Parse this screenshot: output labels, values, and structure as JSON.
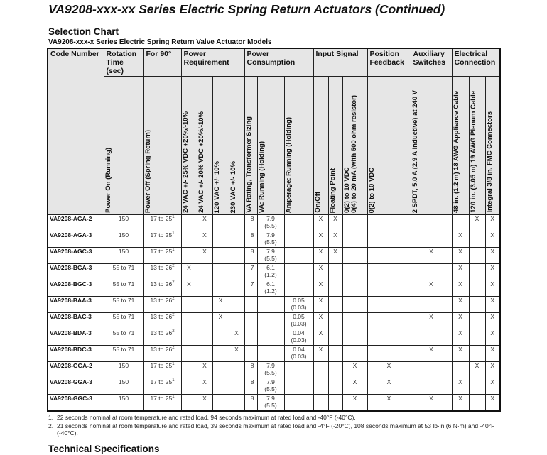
{
  "title": "VA9208-xxx-xx Series Electric Spring Return Actuators (Continued)",
  "section_title": "Selection Chart",
  "table_caption": "VA9208-xxx-x Series Electric Spring Return Valve Actuator Models",
  "headers": {
    "code": "Code Number",
    "rotation": "Rotation Time (sec)",
    "for90": "For 90°",
    "power_req": "Power Requirement",
    "power_cons": "Power Consumption",
    "input": "Input Signal",
    "position": "Position Feedback",
    "aux": "Auxiliary Switches",
    "elec": "Electrical Connection"
  },
  "subheaders": [
    "Power On (Running)",
    "Power Off (Spring Return)",
    "24 VAC +/- 25% VDC +20%/-10%",
    "24 VAC +/- 20% VDC +20%/-10%",
    "120 VAC +/- 10%",
    "230 VAC +/- 10%",
    "VA Rating, Transformer Sizing",
    "VA: Running (Holding)",
    "Amperage: Running (Holding)",
    "On/Off",
    "Floating Point",
    "0(2) to 10 VDC\n0(4) to 20 mA (with 500 ohm resistor)",
    "0(2) to 10 VDC",
    "2 SPDT, 5.0 A (2.9 A Inductive) at 240 V",
    "48 in. (1.2 m) 18 AWG Appliance Cable",
    "120 in. (3.05 m) 19 AWG Plenum Cable",
    "Integral 3/8 in. FMC Connectors"
  ],
  "rows": [
    {
      "code": "VA9208-AGA-2",
      "on": "150",
      "off": "17 to 25",
      "note": "1",
      "cells": [
        "",
        "X",
        "",
        "",
        "8",
        "7.9\n(5.5)",
        "",
        "X",
        "X",
        "",
        "",
        "",
        "",
        "X",
        "X"
      ]
    },
    {
      "code": "VA9208-AGA-3",
      "on": "150",
      "off": "17 to 25",
      "note": "1",
      "cells": [
        "",
        "X",
        "",
        "",
        "8",
        "7.9\n(5.5)",
        "",
        "X",
        "X",
        "",
        "",
        "",
        "X",
        "",
        "X"
      ]
    },
    {
      "code": "VA9208-AGC-3",
      "on": "150",
      "off": "17 to 25",
      "note": "1",
      "cells": [
        "",
        "X",
        "",
        "",
        "8",
        "7.9\n(5.5)",
        "",
        "X",
        "X",
        "",
        "",
        "X",
        "X",
        "",
        "X"
      ]
    },
    {
      "code": "VA9208-BGA-3",
      "on": "55 to 71",
      "off": "13 to 26",
      "note": "2",
      "cells": [
        "X",
        "",
        "",
        "",
        "7",
        "6.1\n(1.2)",
        "",
        "X",
        "",
        "",
        "",
        "",
        "X",
        "",
        "X"
      ]
    },
    {
      "code": "VA9208-BGC-3",
      "on": "55 to 71",
      "off": "13 to 26",
      "note": "2",
      "cells": [
        "X",
        "",
        "",
        "",
        "7",
        "6.1\n(1.2)",
        "",
        "X",
        "",
        "",
        "",
        "X",
        "X",
        "",
        "X"
      ]
    },
    {
      "code": "VA9208-BAA-3",
      "on": "55 to 71",
      "off": "13 to 26",
      "note": "2",
      "cells": [
        "",
        "",
        "X",
        "",
        "",
        "",
        "0.05\n(0.03)",
        "X",
        "",
        "",
        "",
        "",
        "X",
        "",
        "X"
      ]
    },
    {
      "code": "VA9208-BAC-3",
      "on": "55 to 71",
      "off": "13 to 26",
      "note": "2",
      "cells": [
        "",
        "",
        "X",
        "",
        "",
        "",
        "0.05\n(0.03)",
        "X",
        "",
        "",
        "",
        "X",
        "X",
        "",
        "X"
      ]
    },
    {
      "code": "VA9208-BDA-3",
      "on": "55 to 71",
      "off": "13 to 26",
      "note": "2",
      "cells": [
        "",
        "",
        "",
        "X",
        "",
        "",
        "0.04\n(0.03)",
        "X",
        "",
        "",
        "",
        "",
        "X",
        "",
        "X"
      ]
    },
    {
      "code": "VA9208-BDC-3",
      "on": "55 to 71",
      "off": "13 to 26",
      "note": "2",
      "cells": [
        "",
        "",
        "",
        "X",
        "",
        "",
        "0.04\n(0.03)",
        "X",
        "",
        "",
        "",
        "X",
        "X",
        "",
        "X"
      ]
    },
    {
      "code": "VA9208-GGA-2",
      "on": "150",
      "off": "17 to 25",
      "note": "1",
      "cells": [
        "",
        "X",
        "",
        "",
        "8",
        "7.9\n(5.5)",
        "",
        "",
        "",
        "X",
        "X",
        "",
        "",
        "X",
        "X"
      ]
    },
    {
      "code": "VA9208-GGA-3",
      "on": "150",
      "off": "17 to 25",
      "note": "1",
      "cells": [
        "",
        "X",
        "",
        "",
        "8",
        "7.9\n(5.5)",
        "",
        "",
        "",
        "X",
        "X",
        "",
        "X",
        "",
        "X"
      ]
    },
    {
      "code": "VA9208-GGC-3",
      "on": "150",
      "off": "17 to 25",
      "note": "1",
      "cells": [
        "",
        "X",
        "",
        "",
        "8",
        "7.9\n(5.5)",
        "",
        "",
        "",
        "X",
        "X",
        "X",
        "X",
        "",
        "X"
      ]
    }
  ],
  "footnotes": [
    {
      "num": "1.",
      "text": "22 seconds nominal at room temperature and rated load, 94 seconds maximum at rated load and -40°F (-40°C)."
    },
    {
      "num": "2.",
      "text": "21 seconds nominal at room temperature and rated load, 39 seconds maximum at rated load and -4°F (-20°C), 108 seconds maximum at 53 lb·in (6 N·m) and -40°F (-40°C)."
    }
  ],
  "next_section": "Technical Specifications"
}
